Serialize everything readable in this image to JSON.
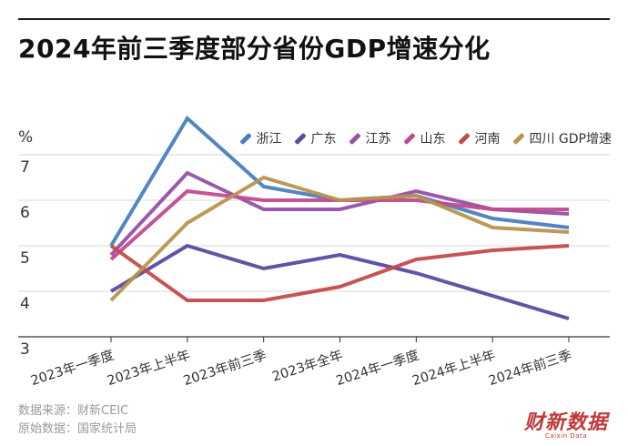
{
  "title": "2024年前三季度部分省份GDP增速分化",
  "unit_label": "%",
  "source_line1": "数据来源：财新CEIC",
  "source_line2": "原始数据：国家统计局",
  "logo": {
    "main": "财新数据",
    "sub": "Caixin Data"
  },
  "chart_data": {
    "type": "line",
    "categories": [
      "2023年一季度",
      "2023年上半年",
      "2023年前三季",
      "2023年全年",
      "2024年一季度",
      "2024年上半年",
      "2024年前三季"
    ],
    "y_ticks": [
      "3",
      "4",
      "5",
      "6",
      "7"
    ],
    "ylim": [
      3,
      7
    ],
    "grid": true,
    "legend_position": "top-right",
    "series": [
      {
        "name": "浙江",
        "color": "#4a7ec0",
        "values": [
          5.0,
          7.8,
          6.3,
          6.0,
          6.1,
          5.6,
          5.4
        ]
      },
      {
        "name": "广东",
        "color": "#5a4aa0",
        "values": [
          4.0,
          5.0,
          4.5,
          4.8,
          4.4,
          3.9,
          3.4
        ]
      },
      {
        "name": "江苏",
        "color": "#9650a8",
        "values": [
          4.8,
          6.6,
          5.8,
          5.8,
          6.2,
          5.8,
          5.7
        ]
      },
      {
        "name": "山东",
        "color": "#c44a8e",
        "values": [
          4.7,
          6.2,
          6.0,
          6.0,
          6.0,
          5.8,
          5.8
        ]
      },
      {
        "name": "河南",
        "color": "#c44a4a",
        "values": [
          5.0,
          3.8,
          3.8,
          4.1,
          4.7,
          4.9,
          5.0
        ]
      },
      {
        "name": "四川 GDP增速",
        "color": "#b8944e",
        "values": [
          3.8,
          5.5,
          6.5,
          6.0,
          6.1,
          5.4,
          5.3
        ]
      }
    ]
  }
}
